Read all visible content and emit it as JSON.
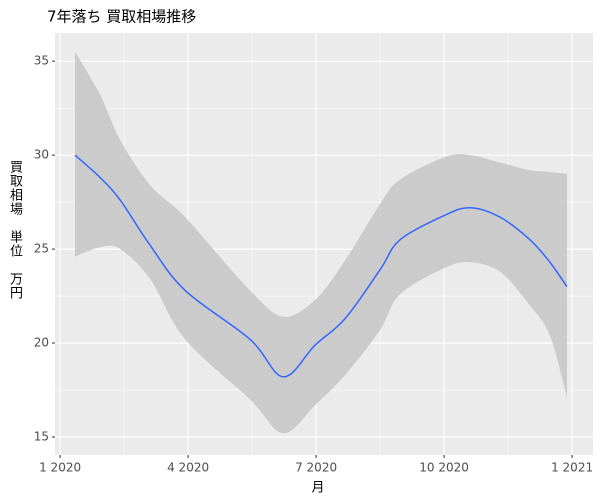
{
  "chart_data": {
    "type": "line",
    "title": "7年落ち 買取相場推移",
    "x_label": "月",
    "y_label": "買取相場　単位　万円",
    "x": [
      0.35,
      0.94,
      1.41,
      2.11,
      2.93,
      4.45,
      5.23,
      5.98,
      6.68,
      7.5,
      7.97,
      9.02,
      9.61,
      10.31,
      11.01,
      11.48,
      11.88
    ],
    "series": [
      {
        "color": "#3366ff",
        "values": [
          30.0,
          28.8,
          27.6,
          25.2,
          22.8,
          20.2,
          18.2,
          19.9,
          21.3,
          23.9,
          25.5,
          26.8,
          27.2,
          26.7,
          25.5,
          24.3,
          23.0
        ]
      }
    ],
    "ribbon": {
      "color": "#c8c8c8",
      "upper": [
        35.5,
        33.2,
        30.8,
        28.4,
        26.7,
        22.8,
        21.4,
        22.3,
        24.4,
        27.4,
        28.7,
        29.9,
        30.0,
        29.6,
        29.2,
        29.1,
        29.0
      ],
      "lower": [
        24.6,
        25.1,
        25.0,
        23.4,
        20.2,
        17.0,
        15.2,
        16.7,
        18.3,
        20.7,
        22.6,
        24.0,
        24.3,
        23.8,
        22.0,
        20.4,
        17.1
      ]
    },
    "xlim": [
      -0.12,
      12.49
    ],
    "xticks": [
      {
        "value": 0,
        "label": "1 2020"
      },
      {
        "value": 3,
        "label": "4 2020"
      },
      {
        "value": 6,
        "label": "7 2020"
      },
      {
        "value": 9,
        "label": "10 2020"
      },
      {
        "value": 12,
        "label": "1 2021"
      }
    ],
    "minor_xticks": [
      1.5,
      4.5,
      7.5,
      10.5
    ],
    "ylim": [
      14.04,
      36.5
    ],
    "yticks": [
      15,
      20,
      25,
      30,
      35
    ],
    "minor_yticks": [
      17.5,
      22.5,
      27.5,
      32.5
    ],
    "grid": true,
    "panel_color": "#ebebeb"
  }
}
